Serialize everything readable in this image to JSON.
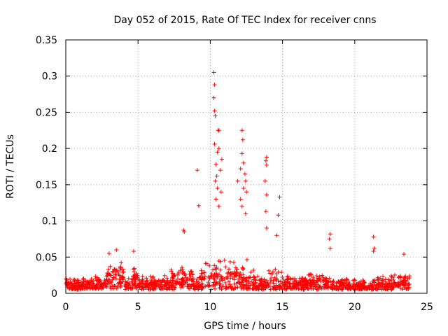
{
  "chart_data": {
    "type": "scatter",
    "title": "Day 052 of 2015, Rate Of TEC Index for receiver cnns",
    "xlabel": "GPS time / hours",
    "ylabel": "ROTI / TECUs",
    "xlim": [
      0,
      25
    ],
    "ylim": [
      0,
      0.35
    ],
    "x_ticks": [
      0,
      5,
      10,
      15,
      20,
      25
    ],
    "y_ticks": [
      0,
      0.05,
      0.1,
      0.15,
      0.2,
      0.25,
      0.3,
      0.35
    ],
    "x_tick_labels": [
      "0",
      "5",
      "10",
      "15",
      "20",
      "25"
    ],
    "y_tick_labels": [
      "0",
      "0.05",
      "0.1",
      "0.15",
      "0.2",
      "0.25",
      "0.3",
      "0.35"
    ],
    "grid": true,
    "marker": "+",
    "color": "#ff0000",
    "series": [
      {
        "name": "ROTI",
        "x_range": [
          0,
          23.8
        ],
        "baseline_band": [
          0.005,
          0.03
        ],
        "peaks": [
          {
            "x": 10.25,
            "y": 0.305
          },
          {
            "x": 10.3,
            "y": 0.288
          },
          {
            "x": 10.25,
            "y": 0.27
          },
          {
            "x": 10.3,
            "y": 0.252
          },
          {
            "x": 10.35,
            "y": 0.245
          },
          {
            "x": 10.55,
            "y": 0.225
          },
          {
            "x": 10.6,
            "y": 0.225
          },
          {
            "x": 10.3,
            "y": 0.206
          },
          {
            "x": 10.6,
            "y": 0.2
          },
          {
            "x": 10.5,
            "y": 0.195
          },
          {
            "x": 10.8,
            "y": 0.185
          },
          {
            "x": 10.4,
            "y": 0.178
          },
          {
            "x": 10.7,
            "y": 0.17
          },
          {
            "x": 10.45,
            "y": 0.162
          },
          {
            "x": 10.35,
            "y": 0.155
          },
          {
            "x": 10.5,
            "y": 0.145
          },
          {
            "x": 10.75,
            "y": 0.14
          },
          {
            "x": 10.4,
            "y": 0.13
          },
          {
            "x": 10.6,
            "y": 0.12
          },
          {
            "x": 9.1,
            "y": 0.17
          },
          {
            "x": 9.2,
            "y": 0.121
          },
          {
            "x": 12.2,
            "y": 0.225
          },
          {
            "x": 12.25,
            "y": 0.212
          },
          {
            "x": 12.2,
            "y": 0.193
          },
          {
            "x": 12.3,
            "y": 0.18
          },
          {
            "x": 12.1,
            "y": 0.172
          },
          {
            "x": 12.4,
            "y": 0.165
          },
          {
            "x": 12.45,
            "y": 0.155
          },
          {
            "x": 11.9,
            "y": 0.155
          },
          {
            "x": 12.3,
            "y": 0.145
          },
          {
            "x": 12.5,
            "y": 0.14
          },
          {
            "x": 12.1,
            "y": 0.13
          },
          {
            "x": 12.2,
            "y": 0.12
          },
          {
            "x": 12.45,
            "y": 0.11
          },
          {
            "x": 13.9,
            "y": 0.188
          },
          {
            "x": 13.85,
            "y": 0.183
          },
          {
            "x": 13.9,
            "y": 0.177
          },
          {
            "x": 13.8,
            "y": 0.155
          },
          {
            "x": 13.9,
            "y": 0.136
          },
          {
            "x": 13.85,
            "y": 0.113
          },
          {
            "x": 13.9,
            "y": 0.09
          },
          {
            "x": 14.8,
            "y": 0.133
          },
          {
            "x": 14.7,
            "y": 0.108
          },
          {
            "x": 14.6,
            "y": 0.08
          },
          {
            "x": 8.15,
            "y": 0.087
          },
          {
            "x": 8.2,
            "y": 0.085
          },
          {
            "x": 18.3,
            "y": 0.082
          },
          {
            "x": 18.25,
            "y": 0.075
          },
          {
            "x": 18.3,
            "y": 0.062
          },
          {
            "x": 21.3,
            "y": 0.078
          },
          {
            "x": 21.35,
            "y": 0.062
          },
          {
            "x": 21.3,
            "y": 0.058
          },
          {
            "x": 23.4,
            "y": 0.054
          },
          {
            "x": 3.5,
            "y": 0.06
          },
          {
            "x": 4.7,
            "y": 0.058
          },
          {
            "x": 3.0,
            "y": 0.055
          }
        ]
      }
    ]
  }
}
